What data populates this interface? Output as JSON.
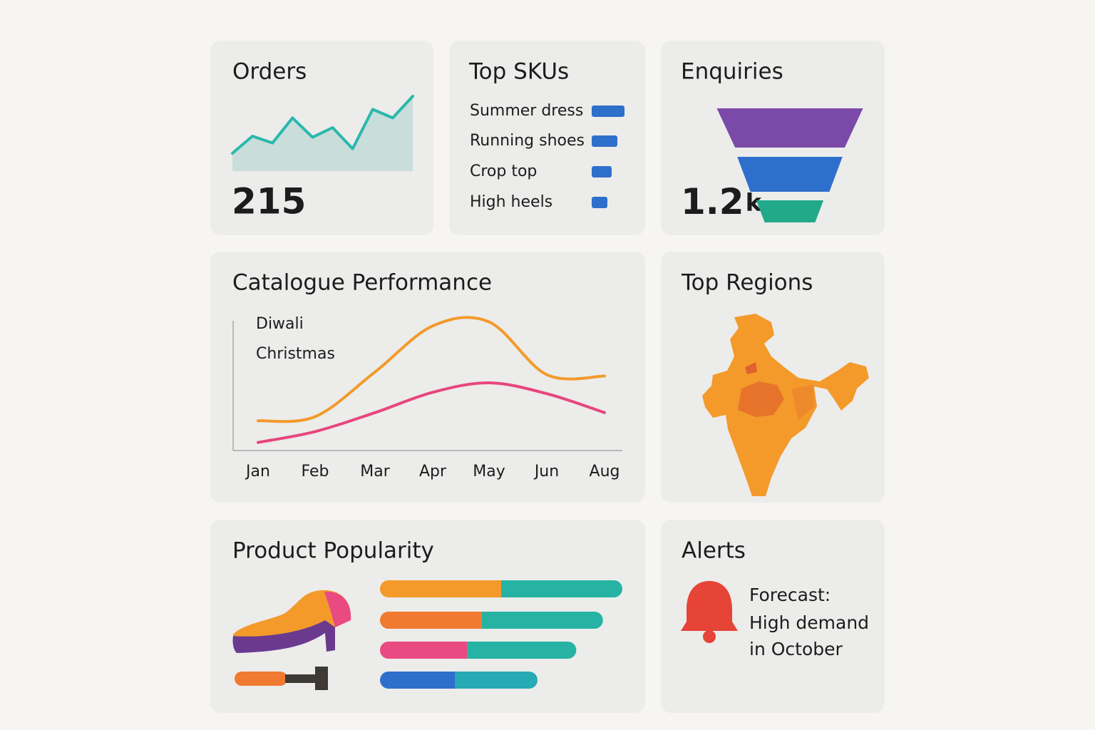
{
  "orders": {
    "title": "Orders",
    "value": "215",
    "trend": [
      0,
      30,
      18,
      62,
      28,
      45,
      8,
      77,
      62,
      100
    ],
    "line_color": "#2bb8ac",
    "area_color": "#c9dedb"
  },
  "top_skus": {
    "title": "Top SKUs",
    "color": "#2f6fcc",
    "items": [
      {
        "name": "Summer dress",
        "value": 46
      },
      {
        "name": "Running shoes",
        "value": 36
      },
      {
        "name": "Crop top",
        "value": 28
      },
      {
        "name": "High heels",
        "value": 22
      }
    ]
  },
  "enquiries": {
    "title": "Enquiries",
    "value": "1.2",
    "unit": "k",
    "funnel": [
      100,
      72,
      46
    ],
    "colors": [
      "#7b4aa8",
      "#2f6fcc",
      "#22a98a"
    ]
  },
  "catalogue": {
    "title": "Catalogue Performance",
    "annotations": [
      "Diwali",
      "Christmas"
    ],
    "categories": [
      "Jan",
      "Feb",
      "Mar",
      "Apr",
      "May",
      "Jun",
      "Aug"
    ],
    "ylim": [
      0,
      100
    ],
    "series": [
      {
        "color": "#f39a2b",
        "values": [
          22,
          25,
          58,
          92,
          95,
          56,
          55
        ]
      },
      {
        "color": "#e8467c",
        "values": [
          6,
          14,
          28,
          43,
          50,
          42,
          28
        ]
      }
    ]
  },
  "top_regions": {
    "title": "Top Regions"
  },
  "product_popularity": {
    "title": "Product Popularity",
    "bars": [
      {
        "segments": [
          {
            "value": 50,
            "color": "#f39a2b"
          },
          {
            "value": 50,
            "color": "#26b3a3"
          }
        ]
      },
      {
        "segments": [
          {
            "value": 42,
            "color": "#f07a30"
          },
          {
            "value": 50,
            "color": "#26b3a3"
          }
        ]
      },
      {
        "segments": [
          {
            "value": 36,
            "color": "#ea4a82"
          },
          {
            "value": 45,
            "color": "#26b3a3"
          }
        ]
      },
      {
        "segments": [
          {
            "value": 31,
            "color": "#2f6fcc"
          },
          {
            "value": 34,
            "color": "#26aab3"
          }
        ]
      }
    ]
  },
  "alerts": {
    "title": "Alerts",
    "message": [
      "Forecast:",
      "High demand",
      "in October"
    ]
  }
}
